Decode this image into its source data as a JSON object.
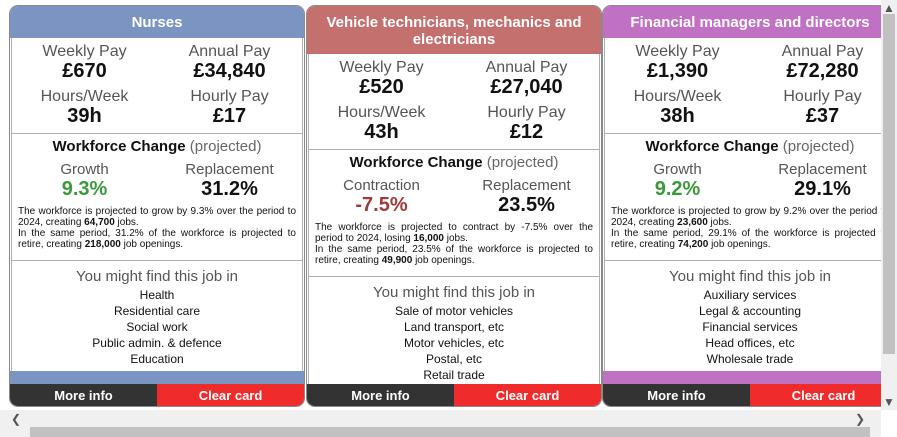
{
  "cards": [
    {
      "title": "Nurses",
      "weekly_label": "Weekly Pay",
      "weekly": "£670",
      "annual_label": "Annual Pay",
      "annual": "£34,840",
      "hours_label": "Hours/Week",
      "hours": "39h",
      "hourly_label": "Hourly Pay",
      "hourly": "£17",
      "wf_title": "Workforce Change",
      "wf_sub": "(projected)",
      "change_label": "Growth",
      "change": "9.3%",
      "replacement_label": "Replacement",
      "replacement": "31.2%",
      "text1": "The workforce is projected to grow by 9.3% over the period to 2024, creating ",
      "num1": "64,700",
      "text2": " jobs.",
      "text3": "In the same period, 31.2% of the workforce is projected to retire, creating ",
      "num2": "218,000",
      "text4": " job openings.",
      "jobs_title": "You might find this job in",
      "jobs": [
        "Health",
        "Residential care",
        "Social work",
        "Public admin. & defence",
        "Education"
      ],
      "more": "More info",
      "clear": "Clear card"
    },
    {
      "title": "Vehicle technicians, mechanics and electricians",
      "weekly_label": "Weekly Pay",
      "weekly": "£520",
      "annual_label": "Annual Pay",
      "annual": "£27,040",
      "hours_label": "Hours/Week",
      "hours": "43h",
      "hourly_label": "Hourly Pay",
      "hourly": "£12",
      "wf_title": "Workforce Change",
      "wf_sub": "(projected)",
      "change_label": "Contraction",
      "change": "-7.5%",
      "replacement_label": "Replacement",
      "replacement": "23.5%",
      "text1": "The workforce is projected to contract by -7.5% over the period to 2024, losing ",
      "num1": "16,000",
      "text2": " jobs.",
      "text3": "In the same period, 23.5% of the workforce is projected to retire, creating ",
      "num2": "49,900",
      "text4": " job openings.",
      "jobs_title": "You might find this job in",
      "jobs": [
        "Sale of motor vehicles",
        "Land transport, etc",
        "Motor vehicles, etc",
        "Postal, etc",
        "Retail trade"
      ],
      "more": "More info",
      "clear": "Clear card"
    },
    {
      "title": "Financial managers and directors",
      "weekly_label": "Weekly Pay",
      "weekly": "£1,390",
      "annual_label": "Annual Pay",
      "annual": "£72,280",
      "hours_label": "Hours/Week",
      "hours": "38h",
      "hourly_label": "Hourly Pay",
      "hourly": "£37",
      "wf_title": "Workforce Change",
      "wf_sub": "(projected)",
      "change_label": "Growth",
      "change": "9.2%",
      "replacement_label": "Replacement",
      "replacement": "29.1%",
      "text1": "The workforce is projected to grow by 9.2% over the period to 2024, creating ",
      "num1": "23,600",
      "text2": " jobs.",
      "text3": "In the same period, 29.1% of the workforce is projected to retire, creating ",
      "num2": "74,200",
      "text4": " job openings.",
      "jobs_title": "You might find this job in",
      "jobs": [
        "Auxiliary  services",
        "Legal & accounting",
        "Financial services",
        "Head offices, etc",
        "Wholesale trade"
      ],
      "more": "More info",
      "clear": "Clear card"
    }
  ],
  "colors": {
    "nurses": "#7b94c2",
    "vehicle": "#c3706f",
    "financial": "#c071c4",
    "growth": "#3a9a3a",
    "contraction": "#a33a3a",
    "clear_button": "#f02b2b",
    "more_button": "#333333"
  },
  "scrollbar": {
    "up_icon": "▲",
    "down_icon": "▼",
    "left_icon": "❮",
    "right_icon": "❯"
  }
}
